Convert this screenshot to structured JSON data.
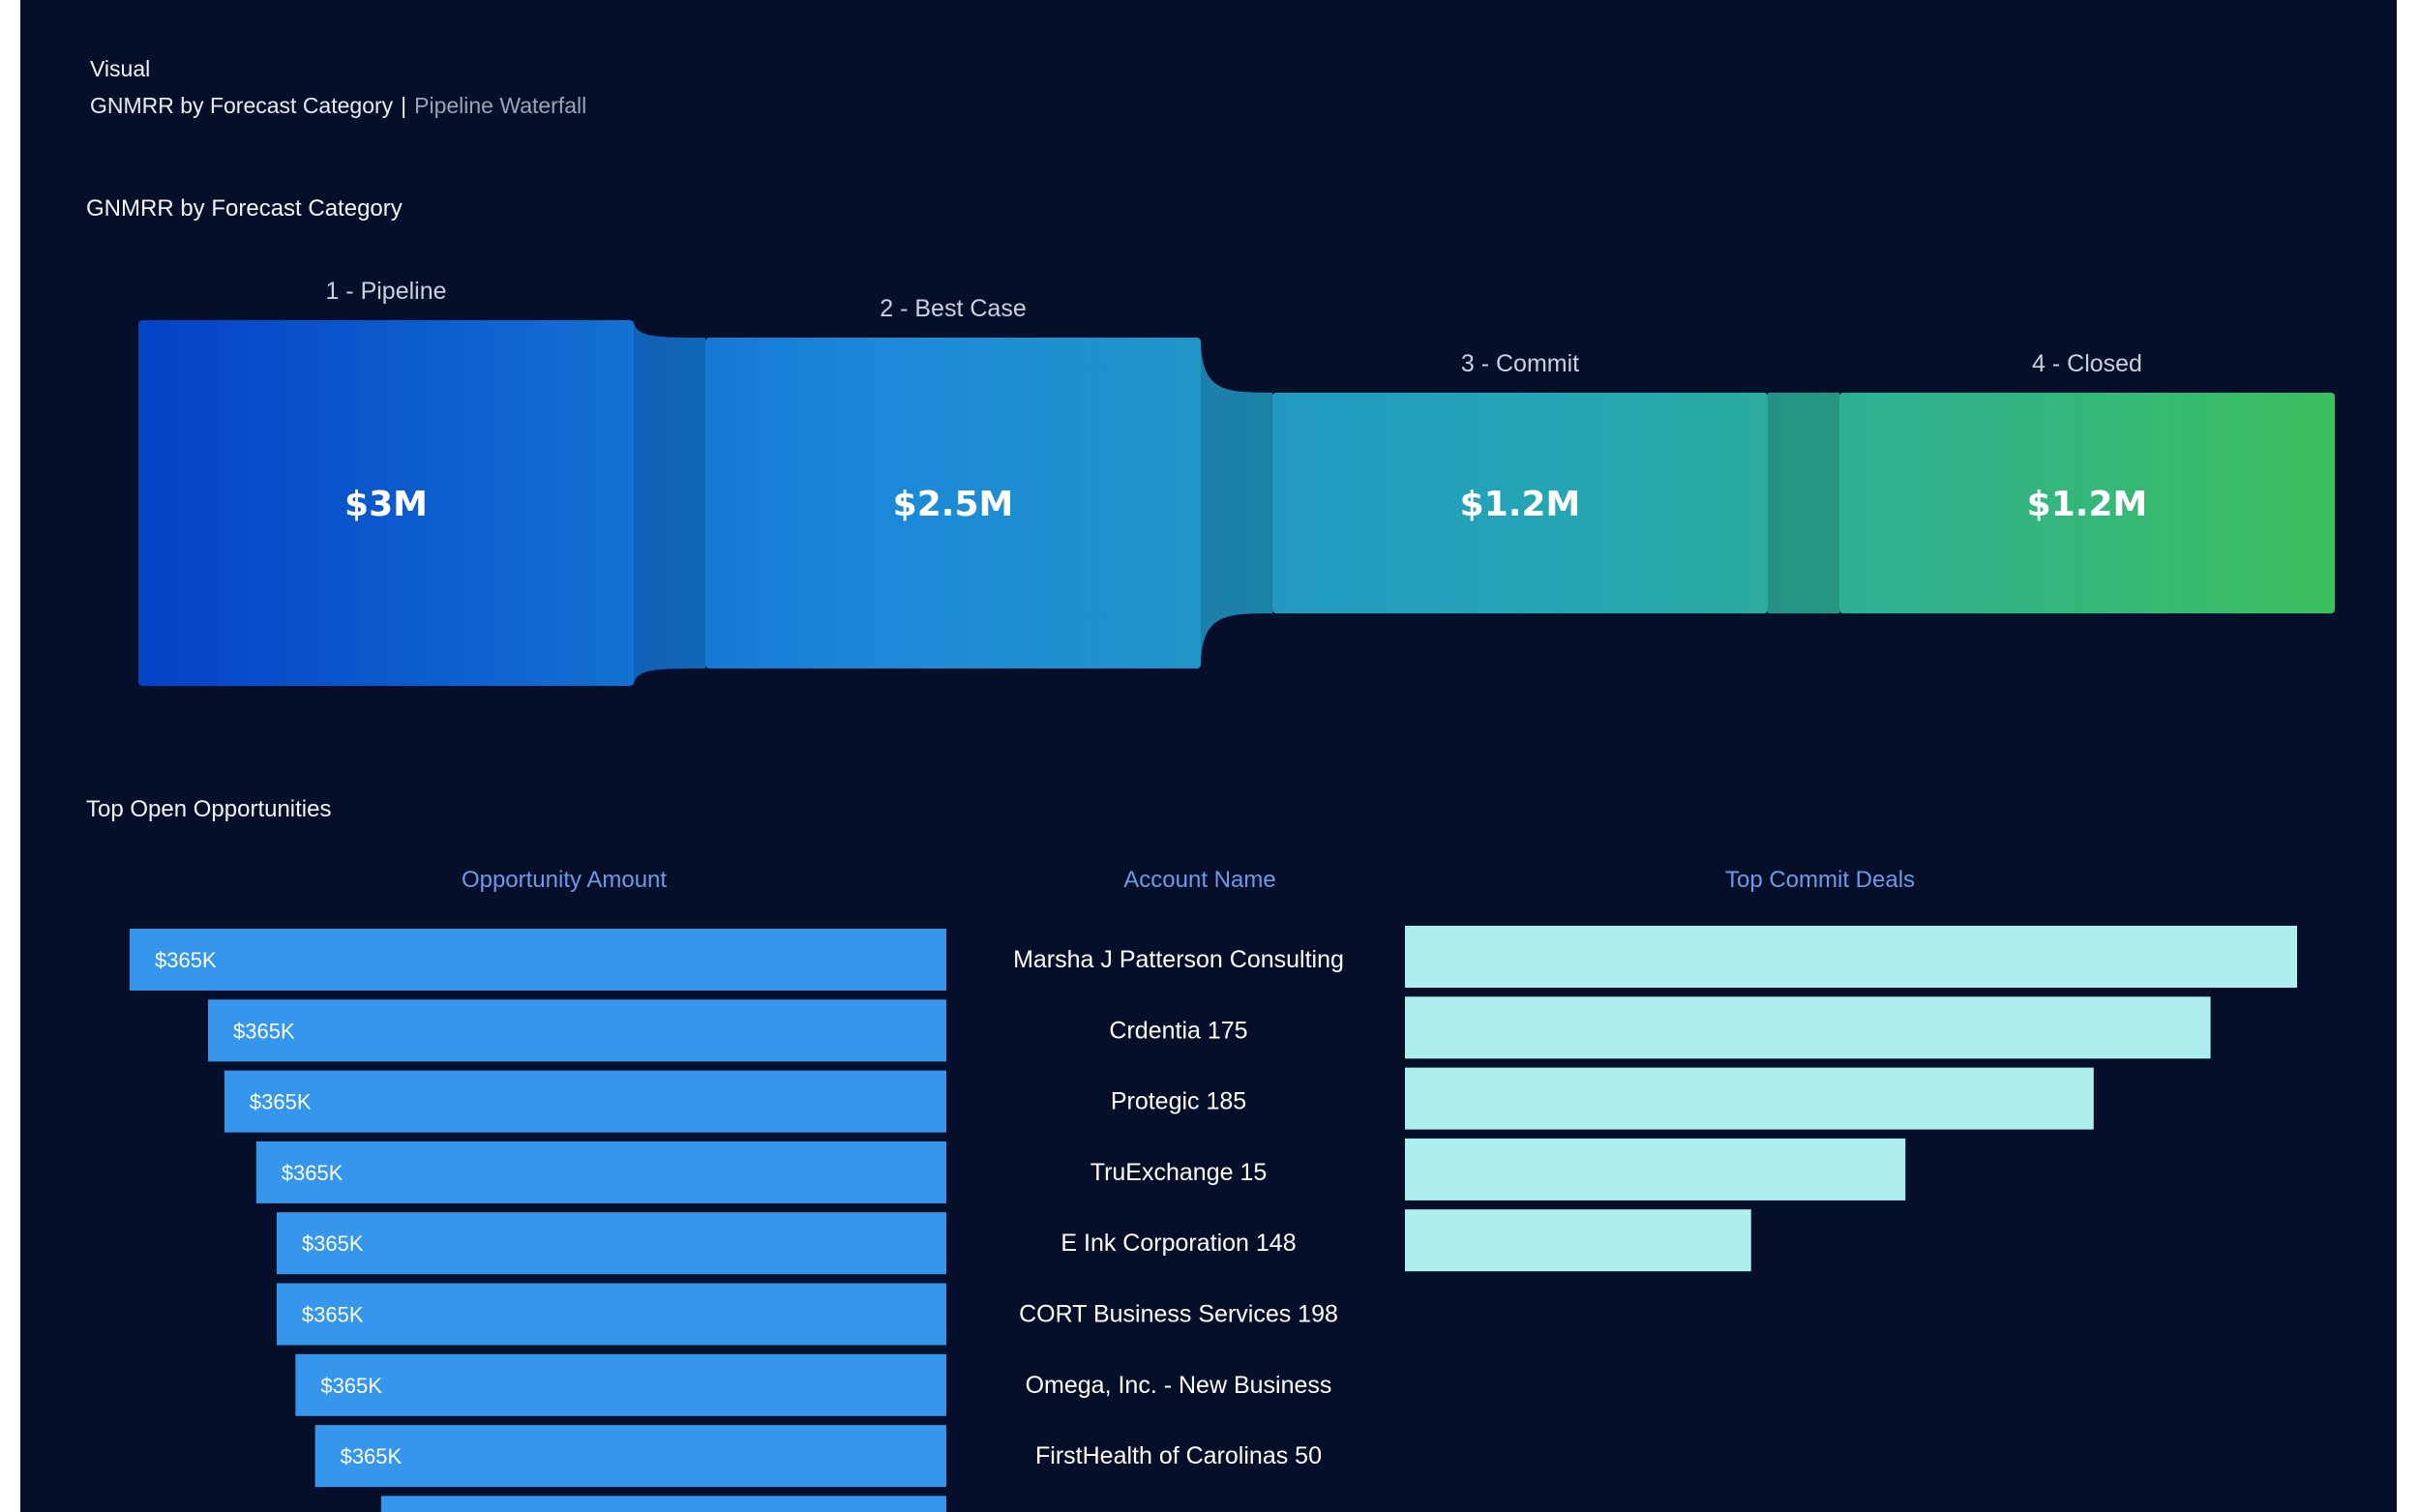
{
  "header": {
    "visual_label": "Visual",
    "breadcrumb_main": "GNMRR by Forecast Category",
    "breadcrumb_sep": "|",
    "breadcrumb_sub": "Pipeline Waterfall"
  },
  "chart_data": [
    {
      "type": "funnel",
      "title": "GNMRR by Forecast Category",
      "categories": [
        "1 - Pipeline",
        "2 - Best Case",
        "3 - Commit",
        "4 - Closed"
      ],
      "values": [
        3.0,
        2.5,
        1.2,
        1.2
      ],
      "value_labels": [
        "$3M",
        "$2.5M",
        "$1.2M",
        "$1.2M"
      ],
      "colors": [
        "#0441c6",
        "#1b87da",
        "#26a6b2",
        "#3cbf5e"
      ]
    },
    {
      "type": "bar",
      "title": "Top Open Opportunities",
      "columns": {
        "amount": "Opportunity Amount",
        "account": "Account Name",
        "commit": "Top Commit Deals"
      },
      "colors": {
        "amount": "#3596ec",
        "commit": "#acefee"
      },
      "rows": [
        {
          "account": "Marsha J Patterson Consulting",
          "amount_label": "$365K",
          "amount_rel": 1.0,
          "commit_rel": 1.0
        },
        {
          "account": "Crdentia 175",
          "amount_label": "$365K",
          "amount_rel": 0.904,
          "commit_rel": 0.903
        },
        {
          "account": "Protegic 185",
          "amount_label": "$365K",
          "amount_rel": 0.884,
          "commit_rel": 0.772
        },
        {
          "account": "TruExchange 15",
          "amount_label": "$365K",
          "amount_rel": 0.845,
          "commit_rel": 0.561
        },
        {
          "account": "E Ink Corporation 148",
          "amount_label": "$365K",
          "amount_rel": 0.82,
          "commit_rel": 0.388
        },
        {
          "account": "CORT Business Services 198",
          "amount_label": "$365K",
          "amount_rel": 0.82,
          "commit_rel": 0
        },
        {
          "account": "Omega, Inc. - New Business",
          "amount_label": "$365K",
          "amount_rel": 0.797,
          "commit_rel": 0
        },
        {
          "account": "FirstHealth of Carolinas 50",
          "amount_label": "$365K",
          "amount_rel": 0.773,
          "commit_rel": 0
        },
        {
          "account": "",
          "amount_label": "",
          "amount_rel": 0.692,
          "commit_rel": 0
        }
      ]
    }
  ]
}
